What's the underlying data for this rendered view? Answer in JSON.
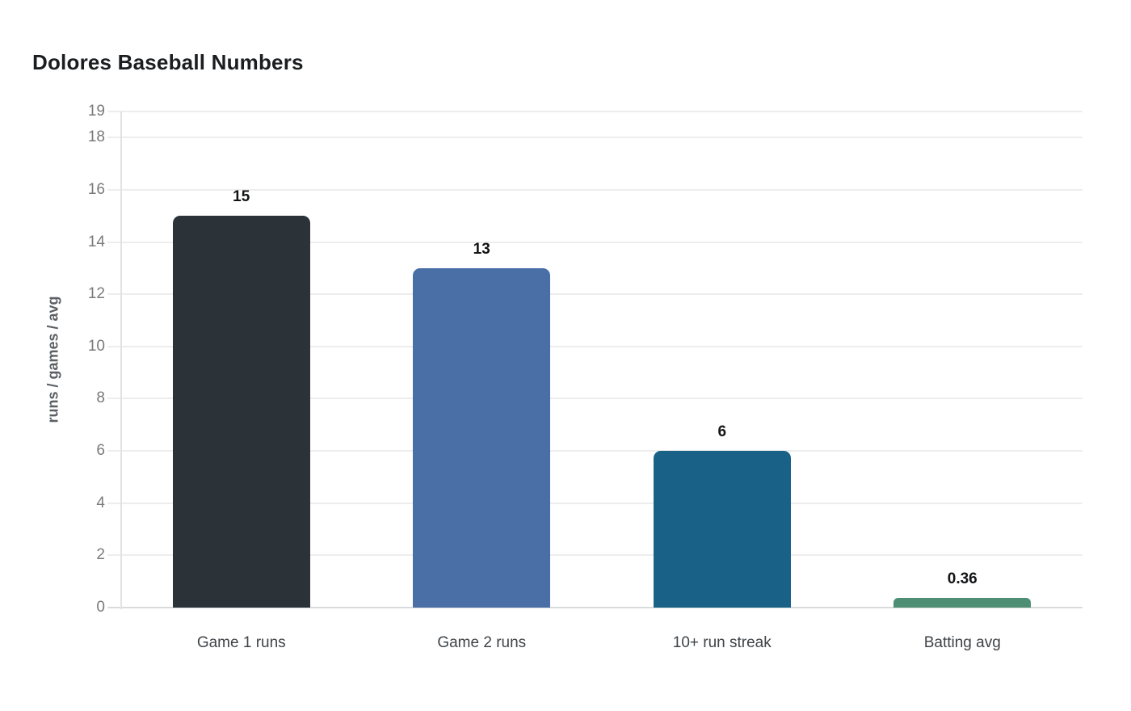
{
  "chart_data": {
    "type": "bar",
    "title": "Dolores Baseball Numbers",
    "xlabel": "",
    "ylabel": "runs / games / avg",
    "categories": [
      "Game 1 runs",
      "Game 2 runs",
      "10+ run streak",
      "Batting avg"
    ],
    "values": [
      15,
      13,
      6,
      0.36
    ],
    "value_labels": [
      "15",
      "13",
      "6",
      "0.36"
    ],
    "bar_colors": [
      "#2b3338",
      "#4a6fa6",
      "#1a6187",
      "#4d8e75"
    ],
    "ylim": [
      0,
      19
    ],
    "yticks": [
      0,
      2,
      4,
      6,
      8,
      10,
      12,
      14,
      16,
      18,
      19
    ],
    "grid": true,
    "legend": false
  },
  "colors": {
    "background": "#ffffff",
    "gridline": "#ededed",
    "zero_line": "#d8dbde",
    "axis_line": "#e2e2e2",
    "tick_label": "#7a7a7a",
    "x_label": "#3f4448",
    "value_label": "#121416",
    "title": "#1b1d1f",
    "y_axis_label": "#5b6065"
  }
}
